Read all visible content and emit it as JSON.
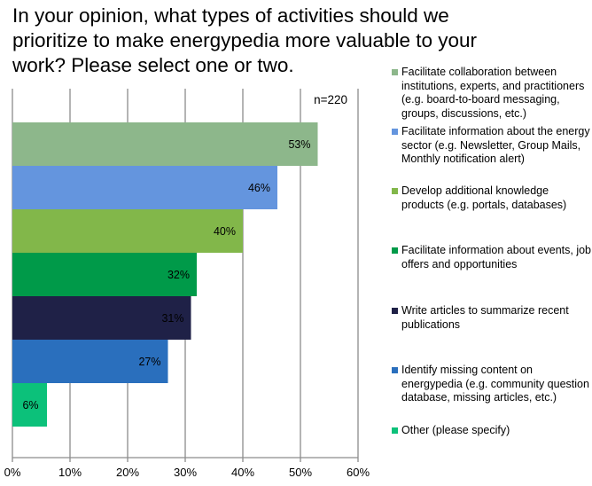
{
  "chart_data": {
    "type": "bar",
    "orientation": "horizontal",
    "title": "In your opinion, what types of activities should we prioritize to make energypedia more valuable to your work? Please select one or two.",
    "annotation": "n=220",
    "categories": [
      "Facilitate collaboration between institutions, experts, and practitioners (e.g. board-to-board messaging, groups, discussions, etc.)",
      "Facilitate information about the energy sector (e.g. Newsletter, Group Mails, Monthly notification alert)",
      "Develop additional knowledge products (e.g. portals, databases)",
      "Facilitate information about events, job offers and opportunities",
      "Write articles to summarize recent publications",
      "Identify missing content on energypedia (e.g. community question database, missing articles, etc.)",
      "Other (please specify)"
    ],
    "values": [
      53,
      46,
      40,
      32,
      31,
      27,
      6
    ],
    "data_labels": [
      "53%",
      "46%",
      "40%",
      "32%",
      "31%",
      "27%",
      "6%"
    ],
    "colors": [
      "#8db78b",
      "#6495de",
      "#82b74a",
      "#009a49",
      "#1f2147",
      "#2a6fbd",
      "#0cc17a"
    ],
    "xlim": [
      0,
      60
    ],
    "xticks": [
      "0%",
      "10%",
      "20%",
      "30%",
      "40%",
      "50%",
      "60%"
    ],
    "grid": true,
    "legend_position": "right"
  }
}
